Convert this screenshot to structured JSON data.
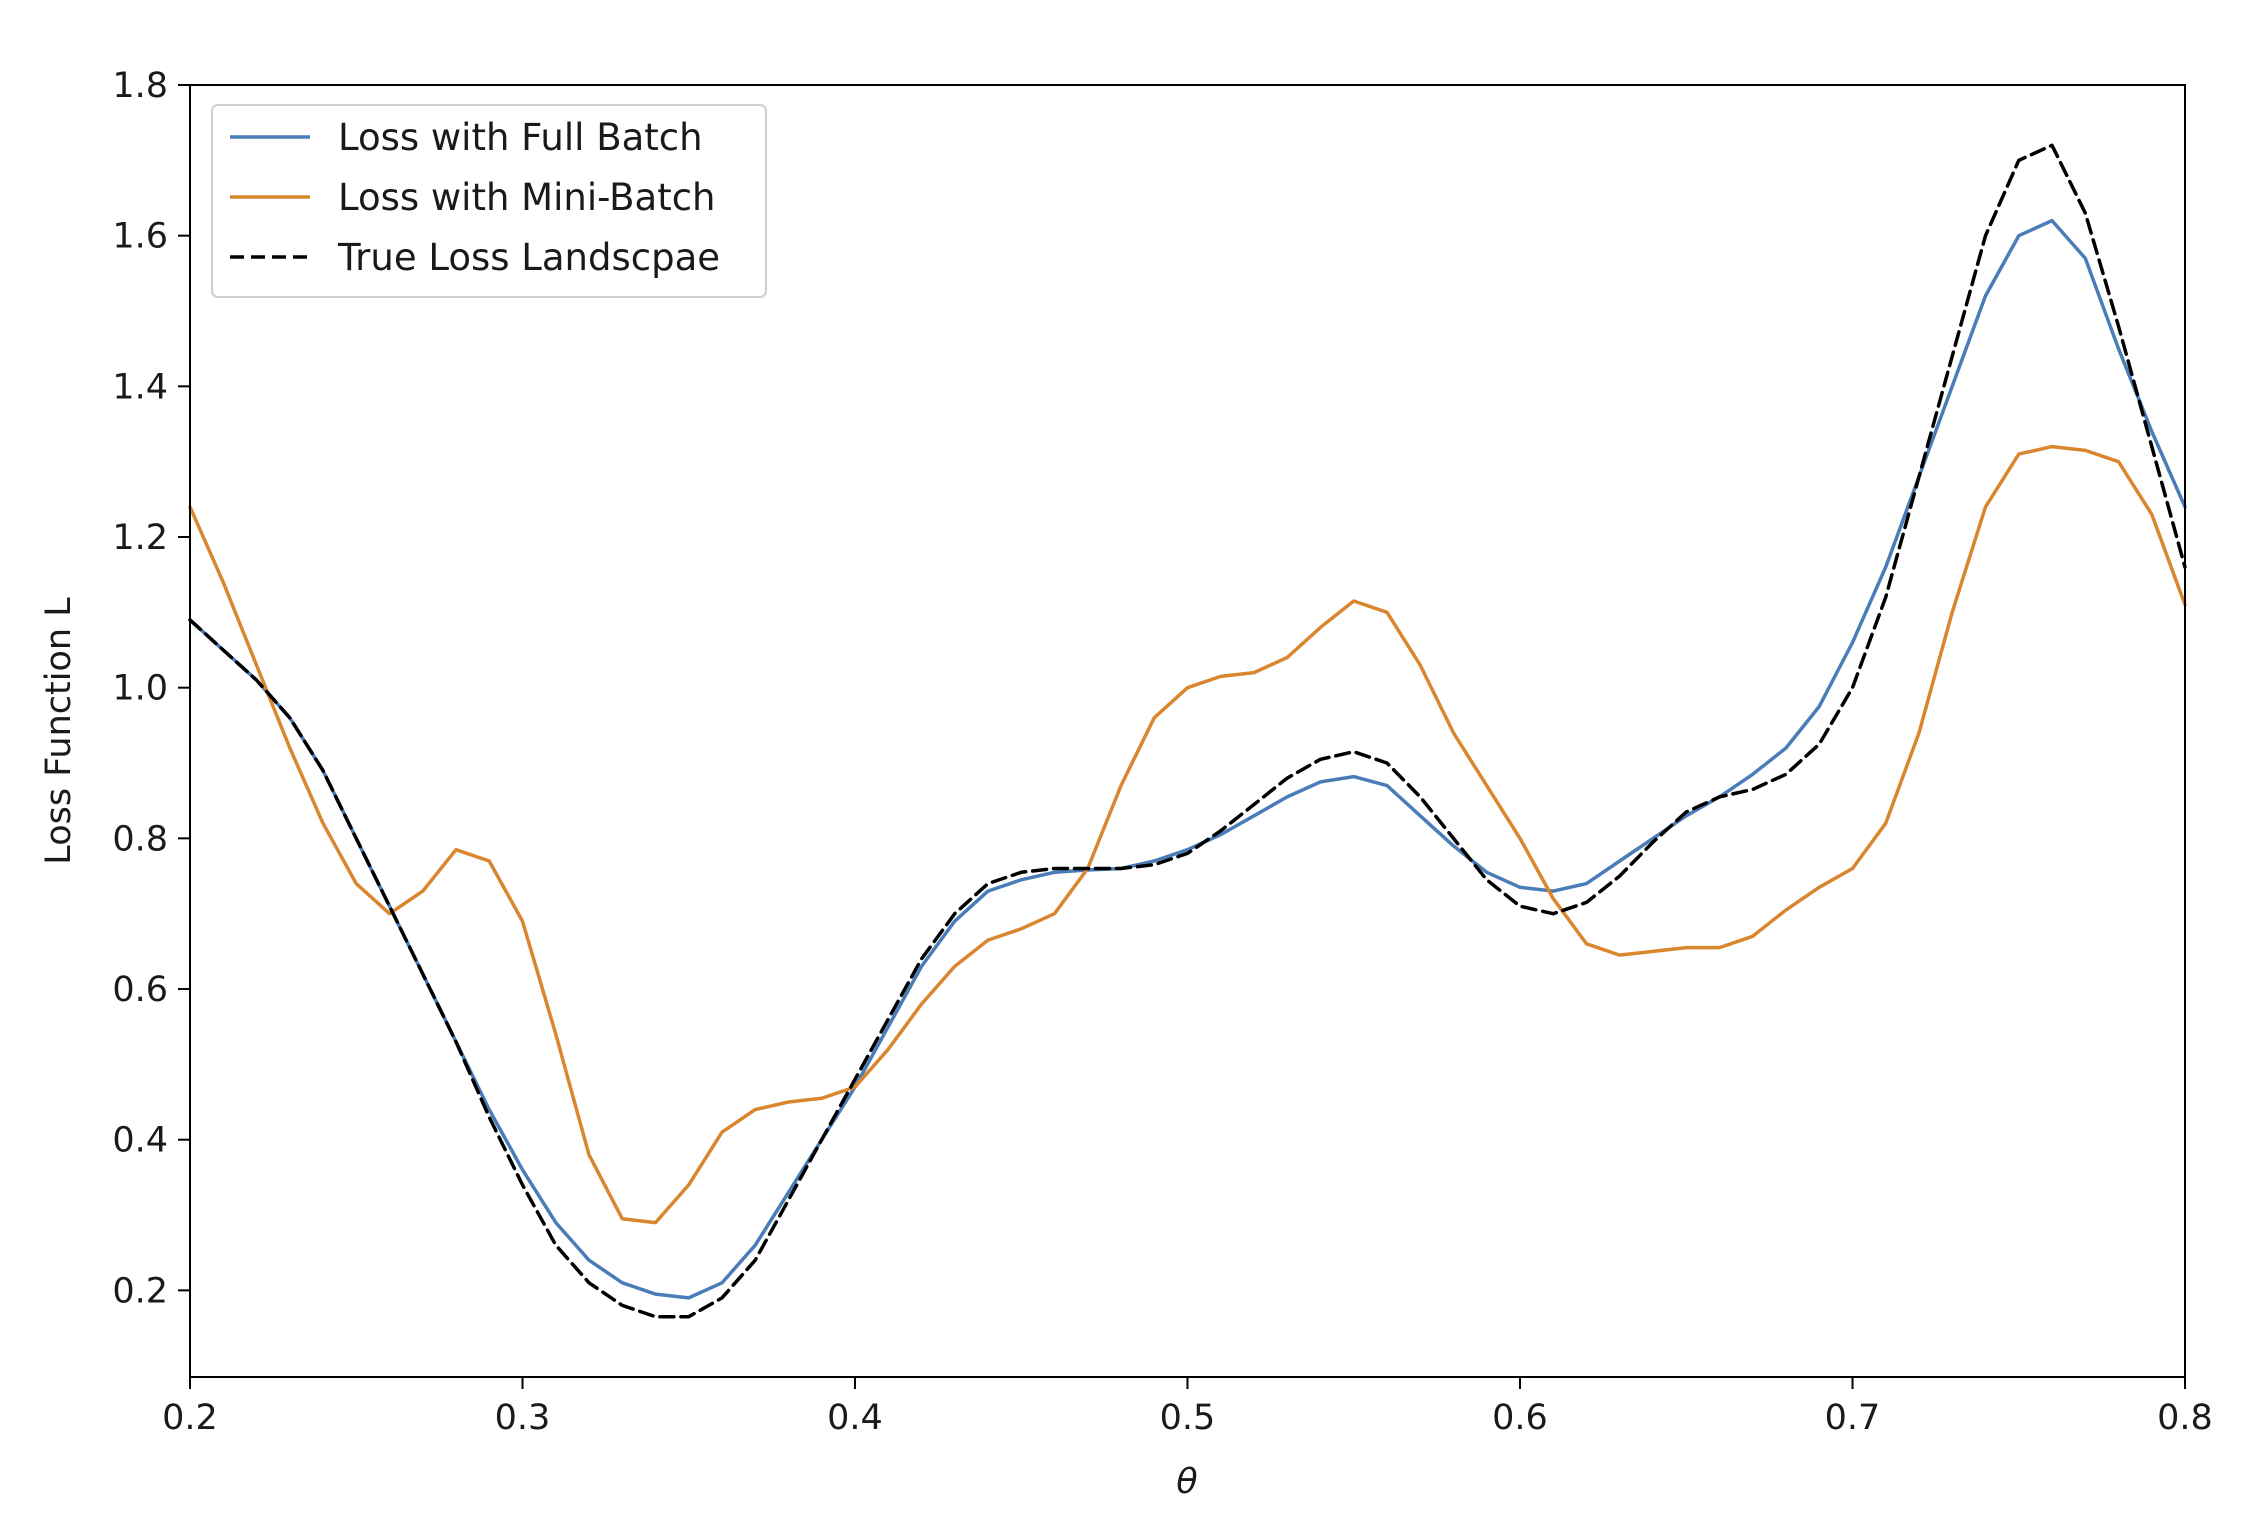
{
  "chart_data": {
    "type": "line",
    "title": "",
    "xlabel": "θ",
    "ylabel": "Loss Function L",
    "xlim": [
      0.2,
      0.8
    ],
    "ylim": [
      0.085,
      1.8
    ],
    "grid": false,
    "legend_position": "top-left",
    "x_ticks": [
      {
        "value": 0.2,
        "label": "0.2"
      },
      {
        "value": 0.3,
        "label": "0.3"
      },
      {
        "value": 0.4,
        "label": "0.4"
      },
      {
        "value": 0.5,
        "label": "0.5"
      },
      {
        "value": 0.6,
        "label": "0.6"
      },
      {
        "value": 0.7,
        "label": "0.7"
      },
      {
        "value": 0.8,
        "label": "0.8"
      }
    ],
    "y_ticks": [
      {
        "value": 0.2,
        "label": "0.2"
      },
      {
        "value": 0.4,
        "label": "0.4"
      },
      {
        "value": 0.6,
        "label": "0.6"
      },
      {
        "value": 0.8,
        "label": "0.8"
      },
      {
        "value": 1.0,
        "label": "1.0"
      },
      {
        "value": 1.2,
        "label": "1.2"
      },
      {
        "value": 1.4,
        "label": "1.4"
      },
      {
        "value": 1.6,
        "label": "1.6"
      },
      {
        "value": 1.8,
        "label": "1.8"
      }
    ],
    "series": [
      {
        "name": "Loss with Full Batch",
        "color": "#4a7db8",
        "style": "solid",
        "x": [
          0.2,
          0.21,
          0.22,
          0.23,
          0.24,
          0.25,
          0.26,
          0.27,
          0.28,
          0.29,
          0.3,
          0.31,
          0.32,
          0.33,
          0.34,
          0.35,
          0.36,
          0.37,
          0.38,
          0.39,
          0.4,
          0.41,
          0.42,
          0.43,
          0.44,
          0.45,
          0.46,
          0.47,
          0.48,
          0.49,
          0.5,
          0.51,
          0.52,
          0.53,
          0.54,
          0.55,
          0.56,
          0.57,
          0.58,
          0.59,
          0.6,
          0.61,
          0.62,
          0.63,
          0.64,
          0.65,
          0.66,
          0.67,
          0.68,
          0.69,
          0.7,
          0.71,
          0.72,
          0.73,
          0.74,
          0.75,
          0.76,
          0.77,
          0.78,
          0.79,
          0.8
        ],
        "y": [
          1.09,
          1.05,
          1.01,
          0.96,
          0.89,
          0.8,
          0.71,
          0.62,
          0.53,
          0.44,
          0.36,
          0.29,
          0.24,
          0.21,
          0.195,
          0.19,
          0.21,
          0.26,
          0.33,
          0.4,
          0.47,
          0.55,
          0.63,
          0.69,
          0.73,
          0.745,
          0.755,
          0.758,
          0.76,
          0.77,
          0.785,
          0.805,
          0.83,
          0.855,
          0.875,
          0.882,
          0.87,
          0.83,
          0.79,
          0.755,
          0.735,
          0.73,
          0.74,
          0.77,
          0.8,
          0.83,
          0.855,
          0.885,
          0.92,
          0.975,
          1.06,
          1.16,
          1.28,
          1.4,
          1.52,
          1.6,
          1.62,
          1.57,
          1.45,
          1.34,
          1.24
        ]
      },
      {
        "name": "Loss with Mini-Batch",
        "color": "#d9862e",
        "style": "solid",
        "x": [
          0.2,
          0.21,
          0.22,
          0.23,
          0.24,
          0.25,
          0.26,
          0.27,
          0.28,
          0.29,
          0.3,
          0.31,
          0.32,
          0.33,
          0.34,
          0.35,
          0.36,
          0.37,
          0.38,
          0.39,
          0.4,
          0.41,
          0.42,
          0.43,
          0.44,
          0.45,
          0.46,
          0.47,
          0.48,
          0.49,
          0.5,
          0.51,
          0.52,
          0.53,
          0.54,
          0.55,
          0.56,
          0.57,
          0.58,
          0.59,
          0.6,
          0.61,
          0.62,
          0.63,
          0.64,
          0.65,
          0.66,
          0.67,
          0.68,
          0.69,
          0.7,
          0.71,
          0.72,
          0.73,
          0.74,
          0.75,
          0.76,
          0.77,
          0.78,
          0.79,
          0.8
        ],
        "y": [
          1.24,
          1.14,
          1.03,
          0.92,
          0.82,
          0.74,
          0.7,
          0.73,
          0.785,
          0.77,
          0.69,
          0.54,
          0.38,
          0.295,
          0.29,
          0.34,
          0.41,
          0.44,
          0.45,
          0.455,
          0.47,
          0.52,
          0.58,
          0.63,
          0.665,
          0.68,
          0.7,
          0.76,
          0.87,
          0.96,
          1.0,
          1.015,
          1.02,
          1.04,
          1.08,
          1.115,
          1.1,
          1.03,
          0.94,
          0.87,
          0.8,
          0.72,
          0.66,
          0.645,
          0.65,
          0.655,
          0.655,
          0.67,
          0.705,
          0.735,
          0.76,
          0.82,
          0.94,
          1.1,
          1.24,
          1.31,
          1.32,
          1.315,
          1.3,
          1.23,
          1.11
        ]
      },
      {
        "name": "True Loss Landscpae",
        "color": "#000000",
        "style": "dashed",
        "x": [
          0.2,
          0.21,
          0.22,
          0.23,
          0.24,
          0.25,
          0.26,
          0.27,
          0.28,
          0.29,
          0.3,
          0.31,
          0.32,
          0.33,
          0.34,
          0.35,
          0.36,
          0.37,
          0.38,
          0.39,
          0.4,
          0.41,
          0.42,
          0.43,
          0.44,
          0.45,
          0.46,
          0.47,
          0.48,
          0.49,
          0.5,
          0.51,
          0.52,
          0.53,
          0.54,
          0.55,
          0.56,
          0.57,
          0.58,
          0.59,
          0.6,
          0.61,
          0.62,
          0.63,
          0.64,
          0.65,
          0.66,
          0.67,
          0.68,
          0.69,
          0.7,
          0.71,
          0.72,
          0.73,
          0.74,
          0.75,
          0.76,
          0.77,
          0.78,
          0.79,
          0.8
        ],
        "y": [
          1.09,
          1.05,
          1.01,
          0.96,
          0.89,
          0.8,
          0.71,
          0.62,
          0.53,
          0.43,
          0.34,
          0.26,
          0.21,
          0.18,
          0.165,
          0.165,
          0.19,
          0.24,
          0.32,
          0.4,
          0.48,
          0.56,
          0.64,
          0.7,
          0.74,
          0.755,
          0.76,
          0.76,
          0.76,
          0.765,
          0.78,
          0.81,
          0.845,
          0.88,
          0.905,
          0.915,
          0.9,
          0.855,
          0.8,
          0.745,
          0.71,
          0.7,
          0.715,
          0.75,
          0.795,
          0.835,
          0.855,
          0.865,
          0.885,
          0.925,
          1.0,
          1.12,
          1.28,
          1.44,
          1.6,
          1.7,
          1.72,
          1.63,
          1.48,
          1.32,
          1.16
        ]
      }
    ]
  }
}
